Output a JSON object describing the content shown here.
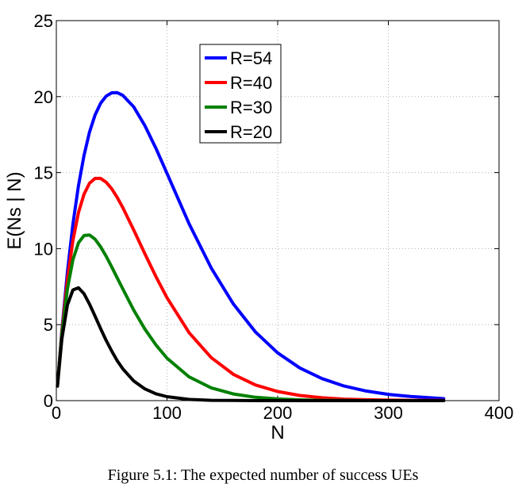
{
  "caption": "Figure 5.1: The expected number of success UEs",
  "chart_data": {
    "type": "line",
    "xlabel": "N",
    "ylabel": "E(Ns | N)",
    "xlim": [
      0,
      400
    ],
    "ylim": [
      0,
      25
    ],
    "xticks": [
      0,
      100,
      200,
      300,
      400
    ],
    "yticks": [
      0,
      5,
      10,
      15,
      20,
      25
    ],
    "grid": true,
    "legend_position": "top-center",
    "x": [
      1,
      5,
      10,
      15,
      20,
      25,
      30,
      35,
      40,
      45,
      50,
      55,
      60,
      70,
      80,
      90,
      100,
      120,
      140,
      160,
      180,
      200,
      220,
      240,
      260,
      280,
      300,
      320,
      350
    ],
    "series": [
      {
        "name": "R=54",
        "color": "#0000ff",
        "values": [
          0.98,
          4.63,
          8.47,
          11.61,
          14.14,
          16.13,
          17.66,
          18.79,
          19.56,
          20.03,
          20.25,
          20.26,
          20.09,
          19.32,
          18.09,
          16.59,
          14.95,
          11.63,
          8.72,
          6.35,
          4.51,
          3.14,
          2.15,
          1.45,
          0.96,
          0.63,
          0.41,
          0.27,
          0.13
        ]
      },
      {
        "name": "R=40",
        "color": "#ff0000",
        "values": [
          0.98,
          4.52,
          7.97,
          10.53,
          12.37,
          13.58,
          14.3,
          14.62,
          14.62,
          14.37,
          13.94,
          13.37,
          12.71,
          11.22,
          9.66,
          8.15,
          6.77,
          4.47,
          2.83,
          1.73,
          1.03,
          0.6,
          0.34,
          0.19,
          0.1,
          0.06,
          0.03,
          0.02,
          0.01
        ]
      },
      {
        "name": "R=30",
        "color": "#008000",
        "values": [
          0.97,
          4.37,
          7.36,
          9.27,
          10.38,
          10.86,
          10.9,
          10.62,
          10.12,
          9.5,
          8.8,
          8.08,
          7.36,
          5.95,
          4.71,
          3.66,
          2.79,
          1.56,
          0.84,
          0.44,
          0.22,
          0.11,
          0.05,
          0.02,
          0.01,
          0.0,
          0.0,
          0.0,
          0.0
        ]
      },
      {
        "name": "R=20",
        "color": "#000000",
        "values": [
          0.95,
          4.07,
          6.3,
          7.28,
          7.42,
          7.03,
          6.35,
          5.56,
          4.74,
          3.96,
          3.26,
          2.63,
          2.1,
          1.29,
          0.77,
          0.45,
          0.26,
          0.08,
          0.02,
          0.01,
          0.0,
          0.0,
          0.0,
          0.0,
          0.0,
          0.0,
          0.0,
          0.0,
          0.0
        ]
      }
    ]
  }
}
